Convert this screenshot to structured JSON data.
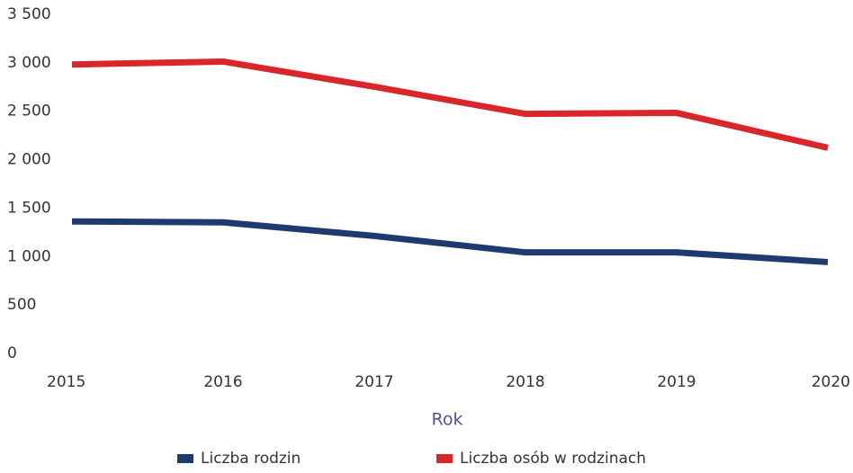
{
  "chart_data": {
    "type": "line",
    "x_label": "Rok",
    "categories": [
      "2015",
      "2016",
      "2017",
      "2018",
      "2019",
      "2020"
    ],
    "series": [
      {
        "name": "Liczba rodzin",
        "color": "#1f3a6e",
        "values": [
          1400,
          1390,
          1250,
          1080,
          1080,
          980
        ]
      },
      {
        "name": "Liczba osób w rodzinach",
        "color": "#d9262b",
        "values": [
          3020,
          3050,
          2790,
          2510,
          2520,
          2160
        ]
      }
    ],
    "ylim": [
      0,
      3500
    ],
    "yticks": [
      0,
      500,
      {
        "value": 1000,
        "label": "1 000"
      },
      {
        "value": 1500,
        "label": "1 500"
      },
      {
        "value": 2000,
        "label": "2 000"
      },
      {
        "value": 2500,
        "label": "2 500"
      },
      {
        "value": 3000,
        "label": "3 000"
      },
      {
        "value": 3500,
        "label": "3 500"
      }
    ],
    "grid": false
  }
}
